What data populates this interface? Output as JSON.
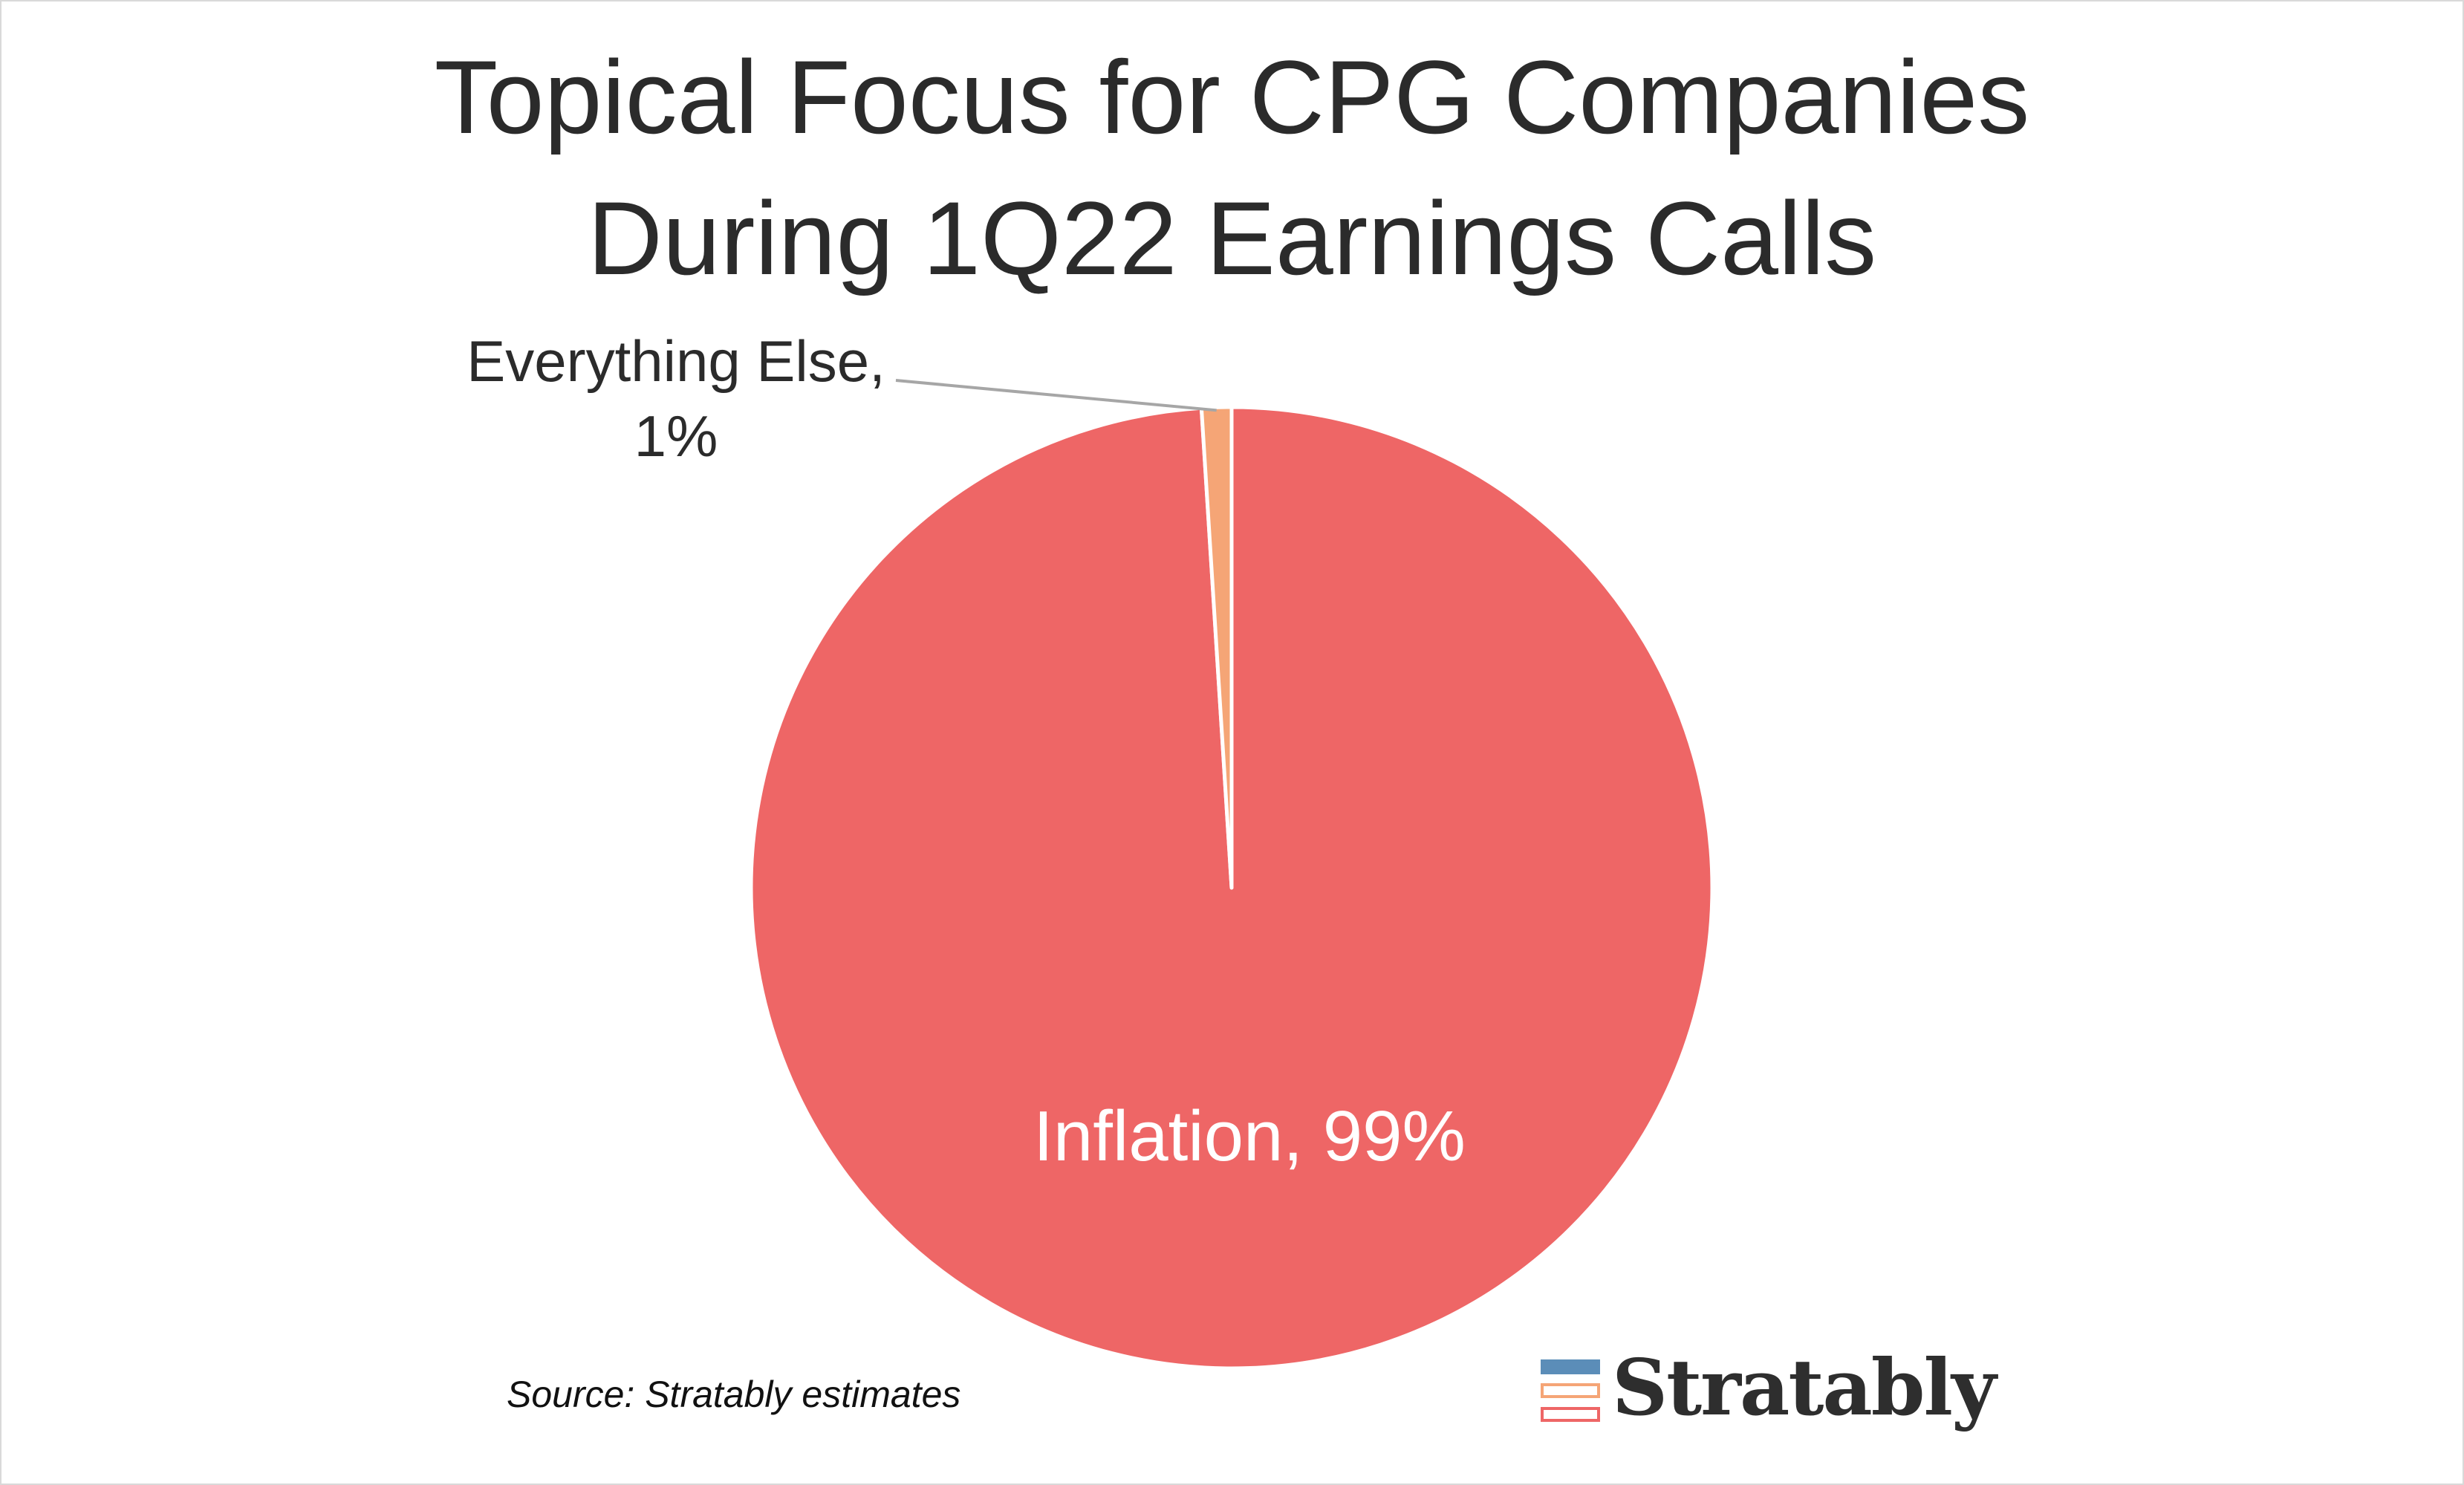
{
  "chart_data": {
    "type": "pie",
    "title": "Topical Focus for CPG Companies During 1Q22 Earnings Calls",
    "title_lines": [
      "Topical Focus for CPG Companies",
      "During 1Q22 Earnings Calls"
    ],
    "slices": [
      {
        "label": "Inflation",
        "value": 99,
        "display": "Inflation, 99%",
        "color": "#ee6666",
        "label_position": "inside"
      },
      {
        "label": "Everything Else",
        "value": 1,
        "display_lines": [
          "Everything Else,",
          "1%"
        ],
        "color": "#f5a576",
        "label_position": "outside-leader"
      }
    ],
    "start_angle": "12 o'clock",
    "direction": "counter-clockwise-for-small-slice",
    "legend": "none"
  },
  "footer": {
    "source": "Source: Stratably estimates"
  },
  "logo": {
    "text": "Stratably",
    "bar_colors": [
      "#5b8db8",
      "#f5a576",
      "#ee6666"
    ]
  }
}
